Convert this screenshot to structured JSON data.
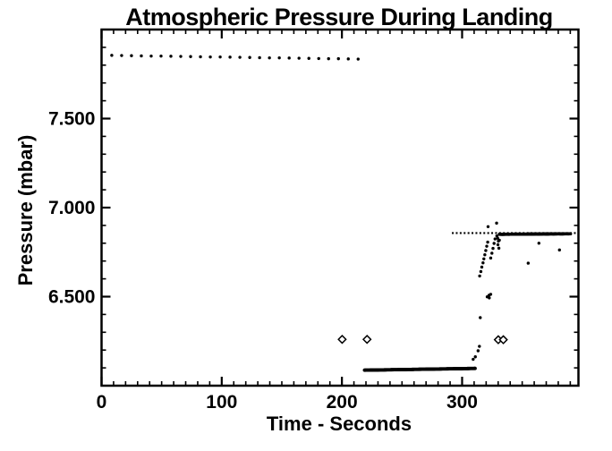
{
  "colors": {
    "foreground": "#000000",
    "background": "#ffffff"
  },
  "chart_data": {
    "type": "scatter",
    "title": "Atmospheric Pressure During Landing",
    "x_axis": {
      "label": "Time - Seconds",
      "min": 0,
      "max": 396.8,
      "major_ticks": [
        {
          "value": 0,
          "label": "0"
        },
        {
          "value": 100,
          "label": "100"
        },
        {
          "value": 200,
          "label": "200"
        },
        {
          "value": 300,
          "label": "300"
        }
      ],
      "minor_tick_step": 10
    },
    "y_axis": {
      "label": "Pressure (mbar)",
      "min": 6.0,
      "max": 8.0,
      "major_ticks": [
        {
          "value": 6.5,
          "label": "6.500"
        },
        {
          "value": 7.0,
          "label": "7.000"
        },
        {
          "value": 7.5,
          "label": "7.500"
        }
      ],
      "minor_tick_step": 0.1
    },
    "grid": false,
    "legend": false,
    "reference_lines": [
      {
        "name": "settled-pressure-dotted-line",
        "style": "dotted",
        "p": 6.857,
        "t_start": 291.5,
        "t_end": 396.8
      }
    ],
    "series": [
      {
        "name": "upper-descent-dots",
        "kind": "points",
        "marker": "dot",
        "size": 1.7,
        "points": [
          [
            8.5,
            7.855
          ],
          [
            16.7,
            7.854
          ],
          [
            24.9,
            7.853
          ],
          [
            33.1,
            7.852
          ],
          [
            41.3,
            7.851
          ],
          [
            49.5,
            7.851
          ],
          [
            57.7,
            7.85
          ],
          [
            65.9,
            7.849
          ],
          [
            74.1,
            7.848
          ],
          [
            82.3,
            7.847
          ],
          [
            90.5,
            7.846
          ],
          [
            98.7,
            7.846
          ],
          [
            106.9,
            7.845
          ],
          [
            115.1,
            7.844
          ],
          [
            123.3,
            7.843
          ],
          [
            131.5,
            7.842
          ],
          [
            139.7,
            7.841
          ],
          [
            147.9,
            7.841
          ],
          [
            156.1,
            7.84
          ],
          [
            164.3,
            7.839
          ],
          [
            172.5,
            7.838
          ],
          [
            180.7,
            7.837
          ],
          [
            188.9,
            7.836
          ],
          [
            197.1,
            7.836
          ],
          [
            205.3,
            7.835
          ],
          [
            213.5,
            7.834
          ]
        ]
      },
      {
        "name": "surface-low-pressure-segment",
        "kind": "dense",
        "marker": "dot",
        "size": 1.9,
        "t_start": 218.8,
        "t_end": 310.8,
        "p_start": 6.087,
        "p_end": 6.097,
        "step": 0.4
      },
      {
        "name": "pressure-rise-transition",
        "kind": "points",
        "marker": "dot",
        "size": 1.7,
        "points": [
          [
            309.2,
            6.148
          ],
          [
            311.0,
            6.162
          ],
          [
            313.3,
            6.196
          ],
          [
            314.4,
            6.221
          ],
          [
            315.1,
            6.382
          ],
          [
            314.6,
            6.616
          ],
          [
            315.6,
            6.641
          ],
          [
            316.4,
            6.666
          ],
          [
            317.4,
            6.69
          ],
          [
            318.1,
            6.712
          ],
          [
            318.9,
            6.735
          ],
          [
            319.7,
            6.759
          ],
          [
            320.5,
            6.783
          ],
          [
            321.3,
            6.806
          ],
          [
            320.9,
            6.499
          ],
          [
            322.6,
            6.493
          ],
          [
            323.8,
            6.513
          ],
          [
            322.4,
            6.508
          ],
          [
            323.8,
            6.717
          ],
          [
            324.8,
            6.744
          ],
          [
            325.7,
            6.771
          ],
          [
            326.6,
            6.799
          ],
          [
            327.4,
            6.824
          ],
          [
            321.6,
            6.893
          ],
          [
            328.7,
            6.913
          ],
          [
            328.9,
            6.841
          ],
          [
            329.6,
            6.828
          ],
          [
            330.2,
            6.812
          ],
          [
            329.8,
            6.792
          ],
          [
            331.0,
            6.817
          ],
          [
            330.6,
            6.772
          ]
        ]
      },
      {
        "name": "settled-pressure-segment",
        "kind": "dense",
        "marker": "dot",
        "size": 1.8,
        "t_start": 331.0,
        "t_end": 390.0,
        "p_start": 6.85,
        "p_end": 6.853,
        "step": 0.4
      },
      {
        "name": "post-landing-outlier-dots",
        "kind": "points",
        "marker": "dot",
        "size": 1.7,
        "points": [
          [
            355.0,
            6.688
          ],
          [
            363.9,
            6.8
          ],
          [
            381.0,
            6.762
          ]
        ]
      },
      {
        "name": "event-diamond-markers",
        "kind": "points",
        "marker": "open-diamond",
        "size": 4.2,
        "points": [
          [
            200.2,
            6.26
          ],
          [
            220.9,
            6.26
          ],
          [
            330.1,
            6.258
          ],
          [
            334.3,
            6.258
          ]
        ]
      }
    ]
  }
}
